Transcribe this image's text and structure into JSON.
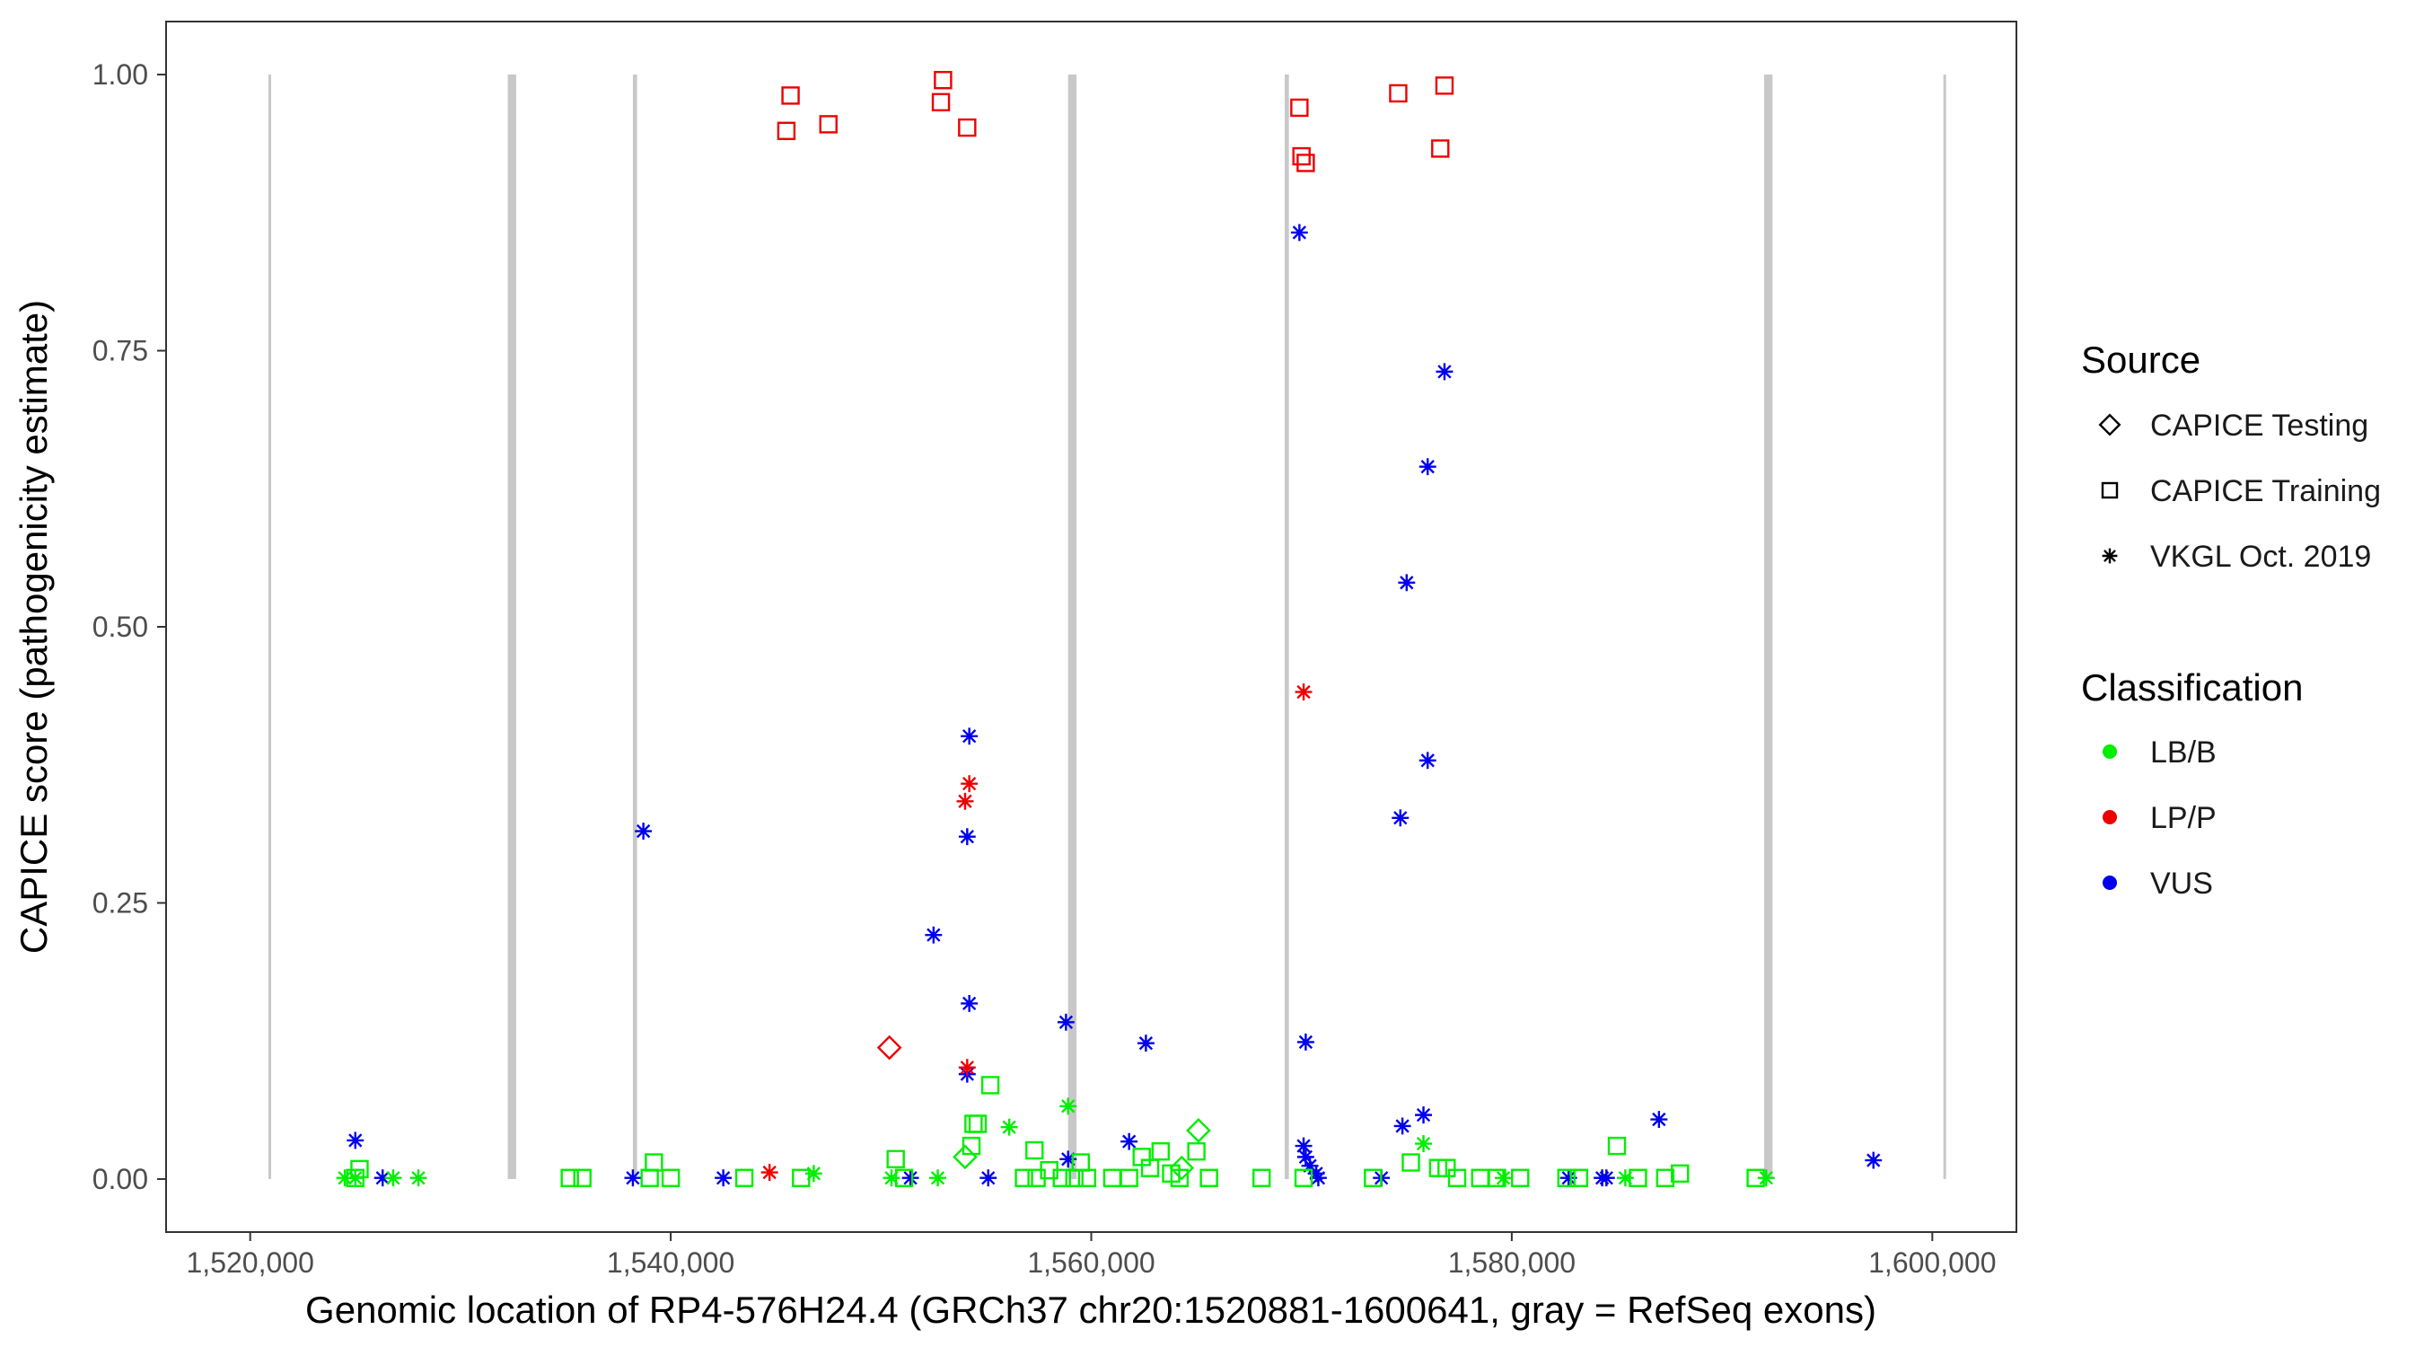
{
  "chart_data": {
    "type": "scatter",
    "xlabel": "Genomic location of RP4-576H24.4 (GRCh37 chr20:1520881-1600641, gray = RefSeq exons)",
    "ylabel": "CAPICE score (pathogenicity estimate)",
    "xlim": [
      1516000,
      1604000
    ],
    "ylim": [
      -0.048,
      1.048
    ],
    "x_ticks": [
      1520000,
      1540000,
      1560000,
      1580000,
      1600000
    ],
    "x_tick_labels": [
      "1,520,000",
      "1,540,000",
      "1,560,000",
      "1,580,000",
      "1,600,000"
    ],
    "y_ticks": [
      0,
      0.25,
      0.5,
      0.75,
      1.0
    ],
    "y_tick_labels": [
      "0.00",
      "0.25",
      "0.50",
      "0.75",
      "1.00"
    ],
    "grid": false,
    "legend_position": "right",
    "exons": [
      {
        "start": 1520881,
        "end": 1520981
      },
      {
        "start": 1532250,
        "end": 1532650
      },
      {
        "start": 1538200,
        "end": 1538400
      },
      {
        "start": 1558900,
        "end": 1559300
      },
      {
        "start": 1569200,
        "end": 1569400
      },
      {
        "start": 1592000,
        "end": 1592400
      },
      {
        "start": 1600541,
        "end": 1600641
      }
    ],
    "legend": {
      "source_title": "Source",
      "source_items": [
        {
          "label": "CAPICE Testing",
          "shape": "diamond"
        },
        {
          "label": "CAPICE Training",
          "shape": "square"
        },
        {
          "label": "VKGL Oct. 2019",
          "shape": "asterisk"
        }
      ],
      "class_title": "Classification",
      "class_items": [
        {
          "label": "LB/B",
          "color": "#00ee00"
        },
        {
          "label": "LP/P",
          "color": "#ee0000"
        },
        {
          "label": "VUS",
          "color": "#0000ee"
        }
      ]
    },
    "colors": {
      "LB/B": "#00ee00",
      "LP/P": "#ee0000",
      "VUS": "#0000ee",
      "exon": "#c8c8c8"
    },
    "series": [
      {
        "source": "CAPICE Training",
        "classification": "LP/P",
        "shape": "square",
        "color": "#ee0000",
        "points": [
          [
            1545700,
            0.981
          ],
          [
            1545500,
            0.949
          ],
          [
            1547500,
            0.955
          ],
          [
            1552950,
            0.995
          ],
          [
            1552850,
            0.975
          ],
          [
            1554100,
            0.952
          ],
          [
            1569900,
            0.97
          ],
          [
            1570000,
            0.926
          ],
          [
            1570200,
            0.92
          ],
          [
            1574600,
            0.983
          ],
          [
            1576800,
            0.99
          ],
          [
            1576600,
            0.933
          ]
        ]
      },
      {
        "source": "VKGL Oct. 2019",
        "classification": "VUS",
        "shape": "asterisk",
        "color": "#0000ee",
        "points": [
          [
            1569900,
            0.857
          ],
          [
            1576800,
            0.731
          ],
          [
            1576000,
            0.645
          ],
          [
            1575000,
            0.54
          ],
          [
            1576000,
            0.379
          ],
          [
            1554200,
            0.401
          ],
          [
            1538700,
            0.315
          ],
          [
            1574700,
            0.327
          ],
          [
            1554100,
            0.31
          ],
          [
            1552500,
            0.221
          ],
          [
            1554200,
            0.159
          ],
          [
            1558800,
            0.142
          ],
          [
            1562600,
            0.123
          ],
          [
            1570200,
            0.124
          ],
          [
            1554100,
            0.095
          ],
          [
            1525000,
            0.035
          ],
          [
            1526300,
            0.001
          ],
          [
            1538200,
            0.001
          ],
          [
            1542500,
            0.001
          ],
          [
            1551400,
            0.001
          ],
          [
            1555100,
            0.001
          ],
          [
            1558900,
            0.018
          ],
          [
            1561800,
            0.034
          ],
          [
            1570100,
            0.03
          ],
          [
            1570200,
            0.02
          ],
          [
            1570400,
            0.012
          ],
          [
            1570700,
            0.005
          ],
          [
            1570800,
            0.001
          ],
          [
            1574800,
            0.048
          ],
          [
            1575800,
            0.058
          ],
          [
            1573800,
            0.001
          ],
          [
            1582700,
            0.001
          ],
          [
            1584300,
            0.001
          ],
          [
            1584500,
            0.001
          ],
          [
            1587000,
            0.054
          ],
          [
            1597200,
            0.017
          ]
        ]
      },
      {
        "source": "VKGL Oct. 2019",
        "classification": "LP/P",
        "shape": "asterisk",
        "color": "#ee0000",
        "points": [
          [
            1570100,
            0.441
          ],
          [
            1554200,
            0.358
          ],
          [
            1554000,
            0.342
          ],
          [
            1554100,
            0.101
          ],
          [
            1544700,
            0.006
          ]
        ]
      },
      {
        "source": "CAPICE Testing",
        "classification": "LP/P",
        "shape": "diamond",
        "color": "#ee0000",
        "points": [
          [
            1550400,
            0.119
          ]
        ]
      },
      {
        "source": "CAPICE Testing",
        "classification": "LB/B",
        "shape": "diamond",
        "color": "#00ee00",
        "points": [
          [
            1565100,
            0.044
          ],
          [
            1554000,
            0.02
          ],
          [
            1564300,
            0.01
          ]
        ]
      },
      {
        "source": "VKGL Oct. 2019",
        "classification": "LB/B",
        "shape": "asterisk",
        "color": "#00ee00",
        "points": [
          [
            1524500,
            0.001
          ],
          [
            1525000,
            0.001
          ],
          [
            1526800,
            0.001
          ],
          [
            1528000,
            0.001
          ],
          [
            1546800,
            0.005
          ],
          [
            1550500,
            0.001
          ],
          [
            1552700,
            0.001
          ],
          [
            1556100,
            0.047
          ],
          [
            1558900,
            0.066
          ],
          [
            1575800,
            0.032
          ],
          [
            1579600,
            0.001
          ],
          [
            1585400,
            0.001
          ],
          [
            1592100,
            0.001
          ]
        ]
      },
      {
        "source": "CAPICE Training",
        "classification": "LB/B",
        "shape": "square",
        "color": "#00ee00",
        "points": [
          [
            1525200,
            0.009
          ],
          [
            1525000,
            0.001
          ],
          [
            1535200,
            0.001
          ],
          [
            1535800,
            0.001
          ],
          [
            1539200,
            0.015
          ],
          [
            1539000,
            0.001
          ],
          [
            1540000,
            0.001
          ],
          [
            1543500,
            0.001
          ],
          [
            1546200,
            0.001
          ],
          [
            1550700,
            0.018
          ],
          [
            1551100,
            0.001
          ],
          [
            1554300,
            0.03
          ],
          [
            1554600,
            0.05
          ],
          [
            1554400,
            0.05
          ],
          [
            1555200,
            0.085
          ],
          [
            1557300,
            0.026
          ],
          [
            1558000,
            0.008
          ],
          [
            1559500,
            0.015
          ],
          [
            1556800,
            0.001
          ],
          [
            1557400,
            0.001
          ],
          [
            1558600,
            0.001
          ],
          [
            1559200,
            0.001
          ],
          [
            1559800,
            0.001
          ],
          [
            1561000,
            0.001
          ],
          [
            1561800,
            0.001
          ],
          [
            1562400,
            0.02
          ],
          [
            1562800,
            0.01
          ],
          [
            1563300,
            0.025
          ],
          [
            1563800,
            0.005
          ],
          [
            1564200,
            0.001
          ],
          [
            1565000,
            0.025
          ],
          [
            1565600,
            0.001
          ],
          [
            1568100,
            0.001
          ],
          [
            1570100,
            0.001
          ],
          [
            1573400,
            0.001
          ],
          [
            1575200,
            0.015
          ],
          [
            1576500,
            0.01
          ],
          [
            1576900,
            0.01
          ],
          [
            1577400,
            0.001
          ],
          [
            1578500,
            0.001
          ],
          [
            1579300,
            0.001
          ],
          [
            1580400,
            0.001
          ],
          [
            1582600,
            0.001
          ],
          [
            1583200,
            0.001
          ],
          [
            1585000,
            0.03
          ],
          [
            1586000,
            0.001
          ],
          [
            1587300,
            0.001
          ],
          [
            1588000,
            0.005
          ],
          [
            1591600,
            0.001
          ]
        ]
      }
    ]
  }
}
